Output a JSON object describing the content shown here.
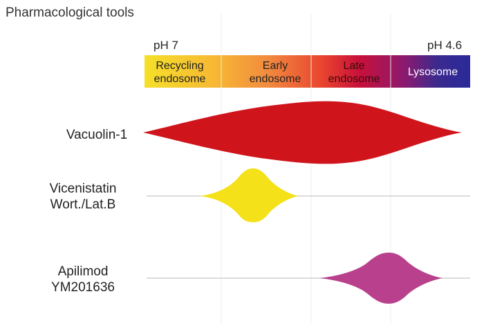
{
  "header": {
    "title": "Pharmacological tools"
  },
  "ph_scale": {
    "left_label": "pH 7",
    "right_label": "pH 4.6"
  },
  "compartments": {
    "recycling": [
      "Recycling",
      "endosome"
    ],
    "early": [
      "Early",
      "endosome"
    ],
    "late": [
      "Late",
      "endosome"
    ],
    "lysosome": "Lysosome"
  },
  "tools": [
    {
      "lines": [
        "Vacuolin-1"
      ],
      "color": "#d0141c"
    },
    {
      "lines": [
        "Vicenistatin",
        "Wort./Lat.B"
      ],
      "color": "#f5e11a"
    },
    {
      "lines": [
        "Apilimod",
        "YM201636"
      ],
      "color": "#b8408c"
    }
  ]
}
